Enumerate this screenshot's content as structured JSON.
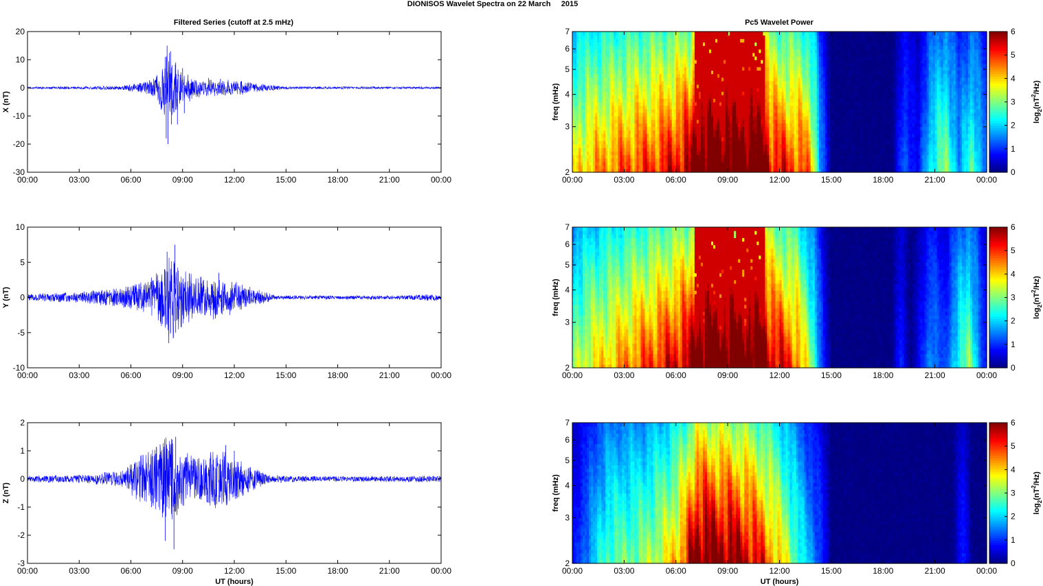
{
  "figure": {
    "suptitle": "DIONISOS Wavelet Spectra on 22 March     2015",
    "left_title": "Filtered Series (cutoff at 2.5 mHz)",
    "right_title": "Pc5 Wavelet Power",
    "xlabel": "UT (hours)",
    "spec_ylabel": "freq (mHz)",
    "colorbar_label_prefix": "log",
    "colorbar_label_sub": "2",
    "colorbar_label_mid": "(nT",
    "colorbar_label_sup": "2",
    "colorbar_label_suffix": "/Hz)"
  },
  "chart_data": [
    {
      "type": "line",
      "panel": "X",
      "ylabel": "X (nT)",
      "ylim": [
        -30,
        20
      ],
      "yticks": [
        -30,
        -20,
        -10,
        0,
        10,
        20
      ],
      "xlim_hours": [
        0,
        24
      ],
      "xtick_labels": [
        "00:00",
        "03:00",
        "06:00",
        "09:00",
        "12:00",
        "15:00",
        "18:00",
        "21:00",
        "00:00"
      ],
      "color": "#0000ff",
      "envelope": [
        [
          0.0,
          0.4
        ],
        [
          3.0,
          0.5
        ],
        [
          5.5,
          0.8
        ],
        [
          7.0,
          2.5
        ],
        [
          7.5,
          5
        ],
        [
          8.0,
          12
        ],
        [
          8.2,
          15
        ],
        [
          8.5,
          10
        ],
        [
          9.0,
          6
        ],
        [
          10.0,
          3.5
        ],
        [
          11.5,
          3
        ],
        [
          12.5,
          2.5
        ],
        [
          14.0,
          1.2
        ],
        [
          15.0,
          0.5
        ],
        [
          24.0,
          0.4
        ]
      ],
      "spikes": [
        [
          8.0,
          11
        ],
        [
          8.05,
          -18
        ],
        [
          8.1,
          15
        ],
        [
          8.15,
          -20
        ],
        [
          8.3,
          13
        ],
        [
          8.35,
          -13
        ],
        [
          8.6,
          9
        ],
        [
          8.7,
          -13
        ],
        [
          9.0,
          7
        ],
        [
          9.1,
          -9
        ],
        [
          10.5,
          3.5
        ],
        [
          11.2,
          3.2
        ]
      ]
    },
    {
      "type": "line",
      "panel": "Y",
      "ylabel": "Y (nT)",
      "ylim": [
        -10,
        10
      ],
      "yticks": [
        -10,
        -5,
        0,
        5,
        10
      ],
      "xlim_hours": [
        0,
        24
      ],
      "xtick_labels": [
        "00:00",
        "03:00",
        "06:00",
        "09:00",
        "12:00",
        "15:00",
        "18:00",
        "21:00",
        "00:00"
      ],
      "color": "#0000ff",
      "envelope": [
        [
          0.0,
          0.5
        ],
        [
          3.0,
          0.8
        ],
        [
          5.5,
          1.5
        ],
        [
          7.0,
          2.5
        ],
        [
          7.8,
          4.5
        ],
        [
          8.2,
          6
        ],
        [
          8.5,
          7
        ],
        [
          9.0,
          4
        ],
        [
          10.0,
          3
        ],
        [
          11.0,
          3.5
        ],
        [
          12.0,
          2.5
        ],
        [
          13.5,
          1
        ],
        [
          14.5,
          0.3
        ],
        [
          22.0,
          0.3
        ],
        [
          23.5,
          0.5
        ],
        [
          24.0,
          0.4
        ]
      ],
      "spikes": [
        [
          8.1,
          6.5
        ],
        [
          8.2,
          -6.5
        ],
        [
          8.55,
          7.5
        ],
        [
          8.6,
          -5
        ],
        [
          8.3,
          -5
        ],
        [
          11.1,
          3.5
        ],
        [
          10.9,
          -3
        ]
      ]
    },
    {
      "type": "line",
      "panel": "Z",
      "ylabel": "Z (nT)",
      "ylim": [
        -3,
        2
      ],
      "yticks": [
        -3,
        -2,
        -1,
        0,
        1,
        2
      ],
      "xlim_hours": [
        0,
        24
      ],
      "xtick_labels": [
        "00:00",
        "03:00",
        "06:00",
        "09:00",
        "12:00",
        "15:00",
        "18:00",
        "21:00",
        "00:00"
      ],
      "color": "#0000ff",
      "envelope": [
        [
          0.0,
          0.12
        ],
        [
          3.0,
          0.15
        ],
        [
          5.5,
          0.3
        ],
        [
          6.5,
          0.9
        ],
        [
          7.5,
          1.2
        ],
        [
          8.0,
          1.5
        ],
        [
          8.5,
          1.5
        ],
        [
          9.0,
          1.0
        ],
        [
          10.0,
          0.8
        ],
        [
          11.0,
          1.2
        ],
        [
          12.0,
          0.8
        ],
        [
          13.0,
          0.5
        ],
        [
          14.0,
          0.15
        ],
        [
          17.0,
          0.1
        ],
        [
          24.0,
          0.12
        ]
      ],
      "spikes": [
        [
          8.0,
          -2.2
        ],
        [
          8.5,
          -2.5
        ],
        [
          8.6,
          1.5
        ],
        [
          8.4,
          1.4
        ],
        [
          11.5,
          1.2
        ],
        [
          12.0,
          1.0
        ],
        [
          7.2,
          -1.0
        ]
      ]
    },
    {
      "type": "heatmap",
      "panel": "X spectrum",
      "ylabel": "freq (mHz)",
      "y_scale": "log",
      "ylim": [
        2,
        7
      ],
      "yticks": [
        2,
        3,
        4,
        5,
        6,
        7
      ],
      "xlim_hours": [
        0,
        24
      ],
      "xtick_labels": [
        "00:00",
        "03:00",
        "06:00",
        "09:00",
        "12:00",
        "15:00",
        "18:00",
        "21:00",
        "00:00"
      ],
      "colormap": "jet",
      "clim": [
        0,
        6
      ],
      "colorbar_ticks": [
        0,
        1,
        2,
        3,
        4,
        5,
        6
      ],
      "activity": [
        [
          0,
          0.55
        ],
        [
          1.0,
          0.62
        ],
        [
          3.0,
          0.7
        ],
        [
          5.0,
          0.75
        ],
        [
          6.8,
          0.85
        ],
        [
          7.2,
          1.0
        ],
        [
          11.0,
          1.0
        ],
        [
          11.5,
          0.8
        ],
        [
          13.5,
          0.7
        ],
        [
          14.0,
          0.55
        ],
        [
          14.3,
          0.3
        ],
        [
          15.0,
          0.0
        ],
        [
          18.5,
          0.0
        ],
        [
          19.2,
          0.2
        ],
        [
          20.0,
          0.1
        ],
        [
          20.8,
          0.35
        ],
        [
          21.6,
          0.45
        ],
        [
          22.4,
          0.25
        ],
        [
          23.2,
          0.4
        ],
        [
          24.0,
          0.2
        ]
      ]
    },
    {
      "type": "heatmap",
      "panel": "Y spectrum",
      "ylabel": "freq (mHz)",
      "y_scale": "log",
      "ylim": [
        2,
        7
      ],
      "yticks": [
        2,
        3,
        4,
        5,
        6,
        7
      ],
      "xlim_hours": [
        0,
        24
      ],
      "xtick_labels": [
        "00:00",
        "03:00",
        "06:00",
        "09:00",
        "12:00",
        "15:00",
        "18:00",
        "21:00",
        "00:00"
      ],
      "colormap": "jet",
      "clim": [
        0,
        6
      ],
      "colorbar_ticks": [
        0,
        1,
        2,
        3,
        4,
        5,
        6
      ],
      "activity": [
        [
          0,
          0.45
        ],
        [
          1.0,
          0.55
        ],
        [
          3.0,
          0.65
        ],
        [
          5.0,
          0.75
        ],
        [
          6.8,
          0.85
        ],
        [
          7.2,
          1.0
        ],
        [
          11.0,
          1.0
        ],
        [
          11.5,
          0.85
        ],
        [
          13.0,
          0.7
        ],
        [
          14.0,
          0.4
        ],
        [
          14.5,
          0.15
        ],
        [
          15.0,
          0.0
        ],
        [
          18.5,
          0.0
        ],
        [
          19.0,
          0.15
        ],
        [
          19.6,
          0.0
        ],
        [
          20.8,
          0.25
        ],
        [
          21.6,
          0.15
        ],
        [
          22.3,
          0.35
        ],
        [
          23.0,
          0.45
        ],
        [
          24.0,
          0.1
        ]
      ]
    },
    {
      "type": "heatmap",
      "panel": "Z spectrum",
      "ylabel": "freq (mHz)",
      "y_scale": "log",
      "ylim": [
        2,
        7
      ],
      "yticks": [
        2,
        3,
        4,
        5,
        6,
        7
      ],
      "xlim_hours": [
        0,
        24
      ],
      "xtick_labels": [
        "00:00",
        "03:00",
        "06:00",
        "09:00",
        "12:00",
        "15:00",
        "18:00",
        "21:00",
        "00:00"
      ],
      "colormap": "jet",
      "clim": [
        0,
        6
      ],
      "colorbar_ticks": [
        0,
        1,
        2,
        3,
        4,
        5,
        6
      ],
      "activity": [
        [
          0,
          0.1
        ],
        [
          1.0,
          0.25
        ],
        [
          2.0,
          0.4
        ],
        [
          4.0,
          0.45
        ],
        [
          5.5,
          0.55
        ],
        [
          6.5,
          0.7
        ],
        [
          7.2,
          0.95
        ],
        [
          9.0,
          0.9
        ],
        [
          10.0,
          0.85
        ],
        [
          11.0,
          0.75
        ],
        [
          12.5,
          0.5
        ],
        [
          13.5,
          0.3
        ],
        [
          14.5,
          0.15
        ],
        [
          15.0,
          0.0
        ],
        [
          22.0,
          0.0
        ],
        [
          22.6,
          0.15
        ],
        [
          23.2,
          0.0
        ],
        [
          24.0,
          0.0
        ]
      ]
    }
  ]
}
